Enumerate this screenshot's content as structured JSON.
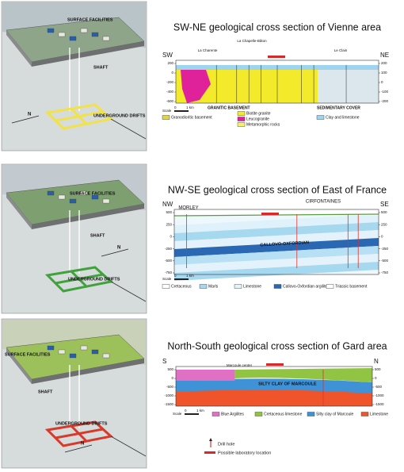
{
  "panels": [
    {
      "illustration": {
        "surface_label": "SURFACE FACILITIES",
        "shaft_label": "SHAFT",
        "drifts_label": "UNDERGROUND DRIFTS",
        "north_label": "N"
      },
      "section": {
        "title": "SW-NE geological cross section of Vienne area",
        "west_label": "SW",
        "east_label": "NE",
        "places": [
          "La Charente",
          "La Chapelle-Bâton",
          "Le Clain"
        ],
        "left_axis": [
          "200",
          "0",
          "-200",
          "-400",
          "-600"
        ],
        "right_axis": [
          "200",
          "100",
          "0",
          "-100",
          "-200"
        ],
        "scale": {
          "label": "Scale",
          "zero": "0",
          "length": "1 km"
        },
        "groups": [
          "GRANITIC BASEMENT",
          "SEDIMENTARY COVER"
        ],
        "legend": [
          {
            "label": "Granodioritic basement",
            "color": "#e2d640"
          },
          {
            "label": "Biotite granite",
            "color": "#f4ea2c"
          },
          {
            "label": "Leucogranite",
            "color": "#e0229a"
          },
          {
            "label": "Metamorphic rocks",
            "color": "#f6f070"
          },
          {
            "label": "Clay and limestone",
            "color": "#9fd4ee"
          }
        ]
      }
    },
    {
      "illustration": {
        "surface_label": "SURFACE FACILITIES",
        "shaft_label": "SHAFT",
        "drifts_label": "UNDERGROUND DRIFTS",
        "north_label": "N"
      },
      "section": {
        "title": "NW-SE geological cross section of East of France",
        "west_label": "NW",
        "east_label": "SE",
        "places": [
          "MORLEY",
          "CIRFONTAINES"
        ],
        "layer_label": "CALLOVO-OXFORDIAN",
        "left_axis": [
          "500",
          "250",
          "0",
          "-250",
          "-500",
          "-750"
        ],
        "right_axis": [
          "500",
          "250",
          "0",
          "-250",
          "-500",
          "-750"
        ],
        "scale": {
          "label": "Scale",
          "zero": "0",
          "length": "1 km"
        },
        "legend": [
          {
            "label": "Cretaceous",
            "color": "#ffffff"
          },
          {
            "label": "Marls",
            "color": "#a6d8f0"
          },
          {
            "label": "Limestone",
            "color": "#e4f3fb"
          },
          {
            "label": "Callovo-Oxfordian argilites",
            "color": "#2a68b4"
          },
          {
            "label": "Triassic basement",
            "color": "#ffffff"
          }
        ]
      }
    },
    {
      "illustration": {
        "surface_label": "SURFACE FACILITIES",
        "shaft_label": "SHAFT",
        "drifts_label": "UNDERGROUND DRIFTS",
        "north_label": "N"
      },
      "section": {
        "title": "North-South geological cross section of Gard area",
        "west_label": "S",
        "east_label": "N",
        "places": [
          "Marcoule center"
        ],
        "layer_label": "SILTY CLAY OF MARCOULE",
        "left_axis": [
          "500",
          "0",
          "-500",
          "-1000",
          "-1500"
        ],
        "right_axis": [
          "500",
          "0",
          "-500",
          "-1000",
          "-1500"
        ],
        "scale": {
          "label": "Scale",
          "zero": "0",
          "length": "1 km"
        },
        "legend": [
          {
            "label": "Blue Argilites",
            "color": "#e070c4"
          },
          {
            "label": "Cretaceous limestone",
            "color": "#92c444"
          },
          {
            "label": "Silty clay of Marcoule",
            "color": "#3f92d6"
          },
          {
            "label": "Limestone",
            "color": "#f0542a"
          }
        ]
      }
    }
  ],
  "key": {
    "drill_hole": "Drill hole",
    "lab_location": "Possible laboratory location"
  }
}
